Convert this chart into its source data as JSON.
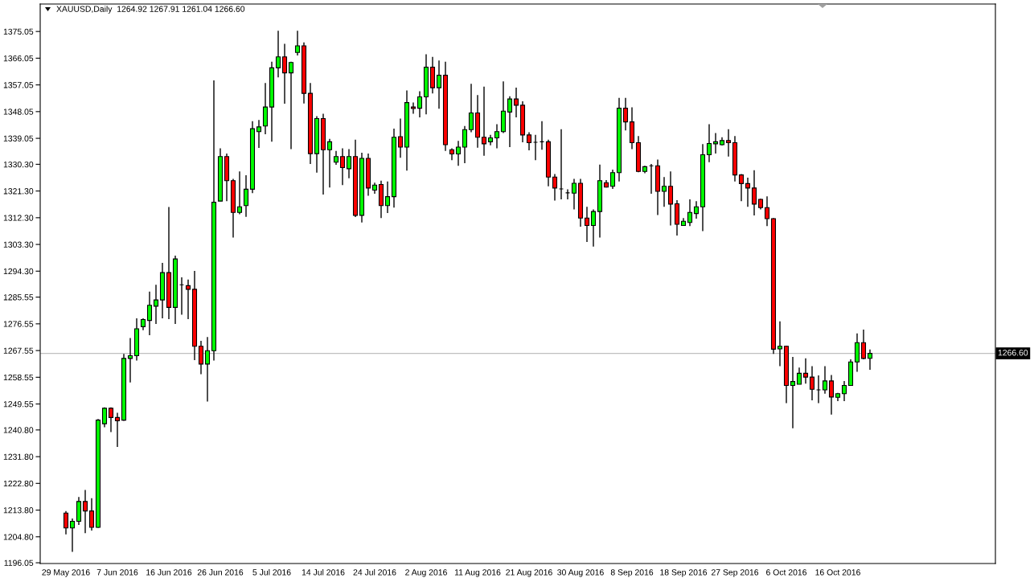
{
  "chart_data": {
    "type": "candlestick",
    "title": "XAUUSD,Daily  1264.92 1267.91 1261.04 1266.60",
    "categories": [
      "29 May 2016",
      null,
      null,
      null,
      null,
      null,
      null,
      null,
      "7 Jun 2016",
      null,
      null,
      null,
      null,
      null,
      null,
      null,
      "16 Jun 2016",
      null,
      null,
      null,
      null,
      null,
      null,
      null,
      "26 Jun 2016",
      null,
      null,
      null,
      null,
      null,
      null,
      null,
      "5 Jul 2016",
      null,
      null,
      null,
      null,
      null,
      null,
      null,
      "14 Jul 2016",
      null,
      null,
      null,
      null,
      null,
      null,
      null,
      "24 Jul 2016",
      null,
      null,
      null,
      null,
      null,
      null,
      null,
      "2 Aug 2016",
      null,
      null,
      null,
      null,
      null,
      null,
      null,
      "11 Aug 2016",
      null,
      null,
      null,
      null,
      null,
      null,
      null,
      "21 Aug 2016",
      null,
      null,
      null,
      null,
      null,
      null,
      null,
      "30 Aug 2016",
      null,
      null,
      null,
      null,
      null,
      null,
      null,
      "8 Sep 2016",
      null,
      null,
      null,
      null,
      null,
      null,
      null,
      "18 Sep 2016",
      null,
      null,
      null,
      null,
      null,
      null,
      null,
      "27 Sep 2016",
      null,
      null,
      null,
      null,
      null,
      null,
      null,
      "6 Oct 2016",
      null,
      null,
      null,
      null,
      null,
      null,
      null,
      "16 Oct 2016",
      null,
      null,
      null,
      null,
      null
    ],
    "ohlc": [
      [
        1212.8,
        1213.5,
        1205.6,
        1207.8
      ],
      [
        1207.8,
        1211.0,
        1199.7,
        1210.0
      ],
      [
        1210.0,
        1218.2,
        1208.8,
        1216.7
      ],
      [
        1216.7,
        1220.6,
        1206.0,
        1213.5
      ],
      [
        1213.5,
        1217.8,
        1206.9,
        1208.0
      ],
      [
        1208.0,
        1244.5,
        1207.8,
        1244.1
      ],
      [
        1242.9,
        1248.4,
        1241.7,
        1248.1
      ],
      [
        1248.1,
        1248.4,
        1240.1,
        1245.0
      ],
      [
        1245.0,
        1246.6,
        1235.1,
        1243.9
      ],
      [
        1244.1,
        1266.4,
        1243.9,
        1264.9
      ],
      [
        1264.9,
        1271.8,
        1256.8,
        1265.8
      ],
      [
        1265.8,
        1278.4,
        1264.2,
        1274.9
      ],
      [
        1275.6,
        1278.4,
        1274.4,
        1278.0
      ],
      [
        1277.7,
        1287.4,
        1272.7,
        1282.8
      ],
      [
        1282.5,
        1289.7,
        1276.5,
        1284.6
      ],
      [
        1284.6,
        1297.1,
        1278.4,
        1293.8
      ],
      [
        1293.8,
        1315.9,
        1278.1,
        1282.1
      ],
      [
        1282.1,
        1299.5,
        1276.5,
        1298.4
      ],
      [
        1289.7,
        1292.2,
        1279.6,
        1289.7
      ],
      [
        1289.4,
        1291.5,
        1278.1,
        1288.2
      ],
      [
        1288.2,
        1294.4,
        1264.3,
        1269.0
      ],
      [
        1269.0,
        1270.8,
        1259.6,
        1263.0
      ],
      [
        1263.0,
        1272.1,
        1250.4,
        1267.5
      ],
      [
        1267.5,
        1358.6,
        1264.2,
        1317.5
      ],
      [
        1317.9,
        1335.7,
        1317.9,
        1332.9
      ],
      [
        1332.9,
        1333.9,
        1317.9,
        1324.8
      ],
      [
        1324.8,
        1325.4,
        1305.6,
        1314.1
      ],
      [
        1314.1,
        1327.9,
        1313.5,
        1316.0
      ],
      [
        1316.4,
        1326.6,
        1312.6,
        1321.9
      ],
      [
        1321.9,
        1344.8,
        1320.6,
        1342.3
      ],
      [
        1341.3,
        1345.2,
        1335.8,
        1342.9
      ],
      [
        1343.2,
        1357.7,
        1340.4,
        1349.6
      ],
      [
        1349.6,
        1364.9,
        1337.9,
        1362.8
      ],
      [
        1362.8,
        1375.3,
        1359.6,
        1366.5
      ],
      [
        1366.5,
        1370.9,
        1350.7,
        1361.1
      ],
      [
        1361.1,
        1364.9,
        1335.4,
        1364.6
      ],
      [
        1368.0,
        1375.3,
        1367.0,
        1370.2
      ],
      [
        1370.2,
        1371.4,
        1350.8,
        1354.2
      ],
      [
        1354.2,
        1357.7,
        1330.4,
        1333.9
      ],
      [
        1333.9,
        1346.5,
        1327.5,
        1345.7
      ],
      [
        1345.7,
        1347.3,
        1320.1,
        1335.2
      ],
      [
        1335.2,
        1338.9,
        1322.5,
        1337.9
      ],
      [
        1331.0,
        1334.8,
        1330.1,
        1332.9
      ],
      [
        1332.9,
        1335.7,
        1323.3,
        1329.2
      ],
      [
        1328.8,
        1335.4,
        1325.6,
        1332.9
      ],
      [
        1332.9,
        1338.6,
        1312.5,
        1313.1
      ],
      [
        1313.1,
        1334.2,
        1310.7,
        1332.3
      ],
      [
        1332.3,
        1333.9,
        1319.7,
        1322.3
      ],
      [
        1321.6,
        1324.1,
        1320.4,
        1323.3
      ],
      [
        1323.5,
        1324.8,
        1312.2,
        1316.4
      ],
      [
        1316.4,
        1324.5,
        1313.9,
        1319.4
      ],
      [
        1319.4,
        1342.3,
        1315.7,
        1339.4
      ],
      [
        1339.6,
        1345.7,
        1332.5,
        1336.1
      ],
      [
        1336.1,
        1355.2,
        1328.2,
        1351.1
      ],
      [
        1349.6,
        1351.1,
        1347.3,
        1349.1
      ],
      [
        1349.2,
        1354.9,
        1346.1,
        1353.0
      ],
      [
        1353.0,
        1367.4,
        1347.1,
        1363.0
      ],
      [
        1363.0,
        1366.5,
        1354.2,
        1356.1
      ],
      [
        1356.1,
        1365.3,
        1349.0,
        1360.3
      ],
      [
        1360.3,
        1364.9,
        1334.8,
        1336.9
      ],
      [
        1335.2,
        1335.7,
        1331.7,
        1333.8
      ],
      [
        1333.8,
        1338.2,
        1329.8,
        1336.1
      ],
      [
        1336.1,
        1343.2,
        1330.7,
        1342.0
      ],
      [
        1342.0,
        1357.4,
        1341.1,
        1347.6
      ],
      [
        1347.6,
        1353.6,
        1335.9,
        1339.4
      ],
      [
        1339.4,
        1356.5,
        1333.2,
        1337.2
      ],
      [
        1337.9,
        1340.2,
        1336.7,
        1339.2
      ],
      [
        1339.2,
        1343.8,
        1335.7,
        1341.3
      ],
      [
        1341.3,
        1358.2,
        1340.8,
        1348.2
      ],
      [
        1347.9,
        1353.2,
        1336.1,
        1352.3
      ],
      [
        1352.3,
        1356.1,
        1346.1,
        1350.2
      ],
      [
        1350.2,
        1351.5,
        1337.7,
        1340.2
      ],
      [
        1340.2,
        1341.1,
        1335.0,
        1337.6
      ],
      [
        1337.7,
        1340.2,
        1331.7,
        1337.7
      ],
      [
        1337.9,
        1344.8,
        1335.2,
        1337.9
      ],
      [
        1337.9,
        1338.6,
        1322.9,
        1326.0
      ],
      [
        1326.0,
        1327.0,
        1318.1,
        1322.3
      ],
      [
        1322.0,
        1342.1,
        1318.5,
        1322.0
      ],
      [
        1320.7,
        1321.9,
        1318.5,
        1320.7
      ],
      [
        1320.6,
        1325.4,
        1315.1,
        1323.9
      ],
      [
        1323.9,
        1325.4,
        1309.3,
        1312.2
      ],
      [
        1312.2,
        1316.0,
        1304.1,
        1309.7
      ],
      [
        1309.7,
        1315.1,
        1302.6,
        1314.4
      ],
      [
        1314.4,
        1330.2,
        1305.6,
        1324.8
      ],
      [
        1324.1,
        1325.0,
        1322.5,
        1322.6
      ],
      [
        1322.9,
        1328.5,
        1322.0,
        1327.5
      ],
      [
        1327.5,
        1352.7,
        1324.5,
        1349.2
      ],
      [
        1349.2,
        1352.7,
        1341.7,
        1344.6
      ],
      [
        1344.6,
        1349.5,
        1335.4,
        1337.6
      ],
      [
        1337.6,
        1339.8,
        1327.6,
        1327.9
      ],
      [
        1327.9,
        1329.8,
        1327.3,
        1329.5
      ],
      [
        1329.8,
        1330.4,
        1320.4,
        1329.8
      ],
      [
        1329.8,
        1331.9,
        1313.2,
        1321.2
      ],
      [
        1321.2,
        1326.0,
        1316.0,
        1322.9
      ],
      [
        1322.9,
        1327.9,
        1309.7,
        1316.9
      ],
      [
        1317.0,
        1318.2,
        1306.3,
        1310.1
      ],
      [
        1309.7,
        1312.2,
        1309.7,
        1311.1
      ],
      [
        1310.7,
        1318.5,
        1309.5,
        1314.1
      ],
      [
        1313.7,
        1317.9,
        1312.0,
        1316.0
      ],
      [
        1316.0,
        1337.1,
        1307.8,
        1333.5
      ],
      [
        1333.5,
        1343.8,
        1331.0,
        1337.3
      ],
      [
        1337.2,
        1340.8,
        1333.9,
        1337.9
      ],
      [
        1336.9,
        1339.4,
        1336.6,
        1338.3
      ],
      [
        1338.3,
        1342.1,
        1332.9,
        1337.6
      ],
      [
        1337.6,
        1339.8,
        1324.5,
        1326.7
      ],
      [
        1326.7,
        1327.0,
        1317.9,
        1323.8
      ],
      [
        1323.8,
        1325.8,
        1316.0,
        1322.3
      ],
      [
        1322.3,
        1328.3,
        1313.1,
        1316.9
      ],
      [
        1318.5,
        1318.7,
        1315.1,
        1315.7
      ],
      [
        1315.7,
        1319.5,
        1309.5,
        1312.0
      ],
      [
        1312.0,
        1312.2,
        1266.4,
        1268.0
      ],
      [
        1268.1,
        1277.4,
        1262.3,
        1269.0
      ],
      [
        1269.0,
        1269.2,
        1249.8,
        1255.8
      ],
      [
        1255.8,
        1265.4,
        1241.4,
        1257.1
      ],
      [
        1256.2,
        1261.8,
        1256.2,
        1259.9
      ],
      [
        1259.9,
        1264.9,
        1256.4,
        1258.6
      ],
      [
        1258.6,
        1262.3,
        1250.8,
        1254.5
      ],
      [
        1254.3,
        1259.2,
        1249.8,
        1254.3
      ],
      [
        1254.3,
        1262.3,
        1253.0,
        1257.3
      ],
      [
        1257.3,
        1259.3,
        1246.0,
        1251.9
      ],
      [
        1251.8,
        1253.3,
        1250.5,
        1253.0
      ],
      [
        1253.0,
        1257.3,
        1250.5,
        1255.8
      ],
      [
        1255.8,
        1264.6,
        1255.8,
        1263.7
      ],
      [
        1263.7,
        1273.3,
        1260.4,
        1270.2
      ],
      [
        1270.2,
        1274.6,
        1264.6,
        1264.9
      ],
      [
        1264.92,
        1267.91,
        1261.04,
        1266.6
      ]
    ],
    "colors": [
      "#ff0000",
      "#00ff00",
      "#00ff00",
      "#ff0000",
      "#ff0000",
      "#00ff00",
      "#00ff00",
      "#ff0000",
      "#ff0000",
      "#00ff00",
      "#00ff00",
      "#00ff00",
      "#00ff00",
      "#00ff00",
      "#00ff00",
      "#00ff00",
      "#ff0000",
      "#00ff00",
      "#000000",
      "#ff0000",
      "#ff0000",
      "#ff0000",
      "#00ff00",
      "#00ff00",
      "#00ff00",
      "#ff0000",
      "#ff0000",
      "#00ff00",
      "#00ff00",
      "#00ff00",
      "#00ff00",
      "#00ff00",
      "#00ff00",
      "#00ff00",
      "#ff0000",
      "#00ff00",
      "#00ff00",
      "#ff0000",
      "#ff0000",
      "#00ff00",
      "#ff0000",
      "#00ff00",
      "#00ff00",
      "#ff0000",
      "#00ff00",
      "#ff0000",
      "#00ff00",
      "#ff0000",
      "#00ff00",
      "#ff0000",
      "#00ff00",
      "#00ff00",
      "#ff0000",
      "#00ff00",
      "#ff0000",
      "#00ff00",
      "#00ff00",
      "#ff0000",
      "#00ff00",
      "#ff0000",
      "#ff0000",
      "#00ff00",
      "#00ff00",
      "#00ff00",
      "#ff0000",
      "#ff0000",
      "#00ff00",
      "#00ff00",
      "#00ff00",
      "#00ff00",
      "#ff0000",
      "#ff0000",
      "#ff0000",
      "#000000",
      "#000000",
      "#ff0000",
      "#ff0000",
      "#000000",
      "#000000",
      "#00ff00",
      "#ff0000",
      "#ff0000",
      "#00ff00",
      "#00ff00",
      "#ff0000",
      "#00ff00",
      "#00ff00",
      "#ff0000",
      "#ff0000",
      "#ff0000",
      "#00ff00",
      "#000000",
      "#ff0000",
      "#00ff00",
      "#ff0000",
      "#ff0000",
      "#00ff00",
      "#00ff00",
      "#00ff00",
      "#00ff00",
      "#00ff00",
      "#00ff00",
      "#00ff00",
      "#ff0000",
      "#ff0000",
      "#ff0000",
      "#ff0000",
      "#ff0000",
      "#ff0000",
      "#ff0000",
      "#ff0000",
      "#00ff00",
      "#ff0000",
      "#00ff00",
      "#00ff00",
      "#ff0000",
      "#ff0000",
      "#000000",
      "#00ff00",
      "#ff0000",
      "#00ff00",
      "#00ff00",
      "#00ff00",
      "#00ff00",
      "#ff0000",
      "#00ff00"
    ],
    "ylim": [
      1195.8,
      1384.3
    ],
    "yticks": [
      1196.05,
      {
        "value": 1204.8,
        "label": "1204.80"
      },
      {
        "value": 1213.8,
        "label": "1213.80"
      },
      {
        "value": 1222.8,
        "label": "1222.80"
      },
      {
        "value": 1231.8,
        "label": "1231.80"
      },
      {
        "value": 1240.8,
        "label": "1240.80"
      },
      1249.55,
      1258.55,
      1267.55,
      1276.55,
      1285.55,
      {
        "value": 1294.3,
        "label": "1294.30"
      },
      {
        "value": 1303.3,
        "label": "1303.30"
      },
      {
        "value": 1312.3,
        "label": "1312.30"
      },
      {
        "value": 1321.3,
        "label": "1321.30"
      },
      {
        "value": 1330.3,
        "label": "1330.30"
      },
      1339.05,
      1348.05,
      1357.05,
      1366.05,
      1375.05
    ],
    "ref_lines": [
      {
        "axis": "y",
        "value": 1266.6,
        "label": "1266.60",
        "color": "#c0c0c0"
      }
    ]
  }
}
